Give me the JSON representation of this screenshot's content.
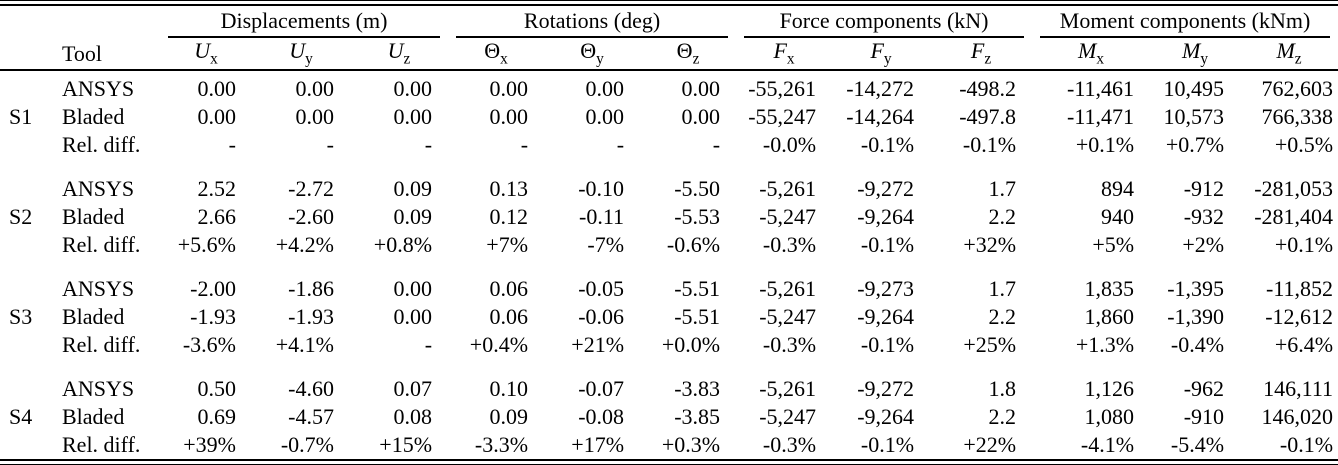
{
  "page": {
    "background": "#ffffff",
    "text_color": "#000000",
    "rule_color": "#000000"
  },
  "table": {
    "tool_header": "Tool",
    "groups": [
      {
        "label": "Displacements (m)",
        "span": 3
      },
      {
        "label": "Rotations (deg)",
        "span": 3
      },
      {
        "label": "Force components (kN)",
        "span": 3
      },
      {
        "label": "Moment components (kNm)",
        "span": 3
      }
    ],
    "columns": [
      {
        "sym": "U",
        "sub": "x",
        "italic": true
      },
      {
        "sym": "U",
        "sub": "y",
        "italic": true
      },
      {
        "sym": "U",
        "sub": "z",
        "italic": true
      },
      {
        "sym": "Θ",
        "sub": "x",
        "italic": false
      },
      {
        "sym": "Θ",
        "sub": "y",
        "italic": false
      },
      {
        "sym": "Θ",
        "sub": "z",
        "italic": false
      },
      {
        "sym": "F",
        "sub": "x",
        "italic": true
      },
      {
        "sym": "F",
        "sub": "y",
        "italic": true
      },
      {
        "sym": "F",
        "sub": "z",
        "italic": true
      },
      {
        "sym": "M",
        "sub": "x",
        "italic": true
      },
      {
        "sym": "M",
        "sub": "y",
        "italic": true
      },
      {
        "sym": "M",
        "sub": "z",
        "italic": true
      }
    ],
    "sections": [
      {
        "id": "S1",
        "rows": [
          {
            "tool": "ANSYS",
            "values": [
              "0.00",
              "0.00",
              "0.00",
              "0.00",
              "0.00",
              "0.00",
              "-55,261",
              "-14,272",
              "-498.2",
              "-11,461",
              "10,495",
              "762,603"
            ]
          },
          {
            "tool": "Bladed",
            "values": [
              "0.00",
              "0.00",
              "0.00",
              "0.00",
              "0.00",
              "0.00",
              "-55,247",
              "-14,264",
              "-497.8",
              "-11,471",
              "10,573",
              "766,338"
            ]
          },
          {
            "tool": "Rel. diff.",
            "values": [
              "-",
              "-",
              "-",
              "-",
              "-",
              "-",
              "-0.0%",
              "-0.1%",
              "-0.1%",
              "+0.1%",
              "+0.7%",
              "+0.5%"
            ]
          }
        ]
      },
      {
        "id": "S2",
        "rows": [
          {
            "tool": "ANSYS",
            "values": [
              "2.52",
              "-2.72",
              "0.09",
              "0.13",
              "-0.10",
              "-5.50",
              "-5,261",
              "-9,272",
              "1.7",
              "894",
              "-912",
              "-281,053"
            ]
          },
          {
            "tool": "Bladed",
            "values": [
              "2.66",
              "-2.60",
              "0.09",
              "0.12",
              "-0.11",
              "-5.53",
              "-5,247",
              "-9,264",
              "2.2",
              "940",
              "-932",
              "-281,404"
            ]
          },
          {
            "tool": "Rel. diff.",
            "values": [
              "+5.6%",
              "+4.2%",
              "+0.8%",
              "+7%",
              "-7%",
              "-0.6%",
              "-0.3%",
              "-0.1%",
              "+32%",
              "+5%",
              "+2%",
              "+0.1%"
            ]
          }
        ]
      },
      {
        "id": "S3",
        "rows": [
          {
            "tool": "ANSYS",
            "values": [
              "-2.00",
              "-1.86",
              "0.00",
              "0.06",
              "-0.05",
              "-5.51",
              "-5,261",
              "-9,273",
              "1.7",
              "1,835",
              "-1,395",
              "-11,852"
            ]
          },
          {
            "tool": "Bladed",
            "values": [
              "-1.93",
              "-1.93",
              "0.00",
              "0.06",
              "-0.06",
              "-5.51",
              "-5,247",
              "-9,264",
              "2.2",
              "1,860",
              "-1,390",
              "-12,612"
            ]
          },
          {
            "tool": "Rel. diff.",
            "values": [
              "-3.6%",
              "+4.1%",
              "-",
              "+0.4%",
              "+21%",
              "+0.0%",
              "-0.3%",
              "-0.1%",
              "+25%",
              "+1.3%",
              "-0.4%",
              "+6.4%"
            ]
          }
        ]
      },
      {
        "id": "S4",
        "rows": [
          {
            "tool": "ANSYS",
            "values": [
              "0.50",
              "-4.60",
              "0.07",
              "0.10",
              "-0.07",
              "-3.83",
              "-5,261",
              "-9,272",
              "1.8",
              "1,126",
              "-962",
              "146,111"
            ]
          },
          {
            "tool": "Bladed",
            "values": [
              "0.69",
              "-4.57",
              "0.08",
              "0.09",
              "-0.08",
              "-3.85",
              "-5,247",
              "-9,264",
              "2.2",
              "1,080",
              "-910",
              "146,020"
            ]
          },
          {
            "tool": "Rel. diff.",
            "values": [
              "+39%",
              "-0.7%",
              "+15%",
              "-3.3%",
              "+17%",
              "+0.3%",
              "-0.3%",
              "-0.1%",
              "+22%",
              "-4.1%",
              "-5.4%",
              "-0.1%"
            ]
          }
        ]
      }
    ]
  }
}
